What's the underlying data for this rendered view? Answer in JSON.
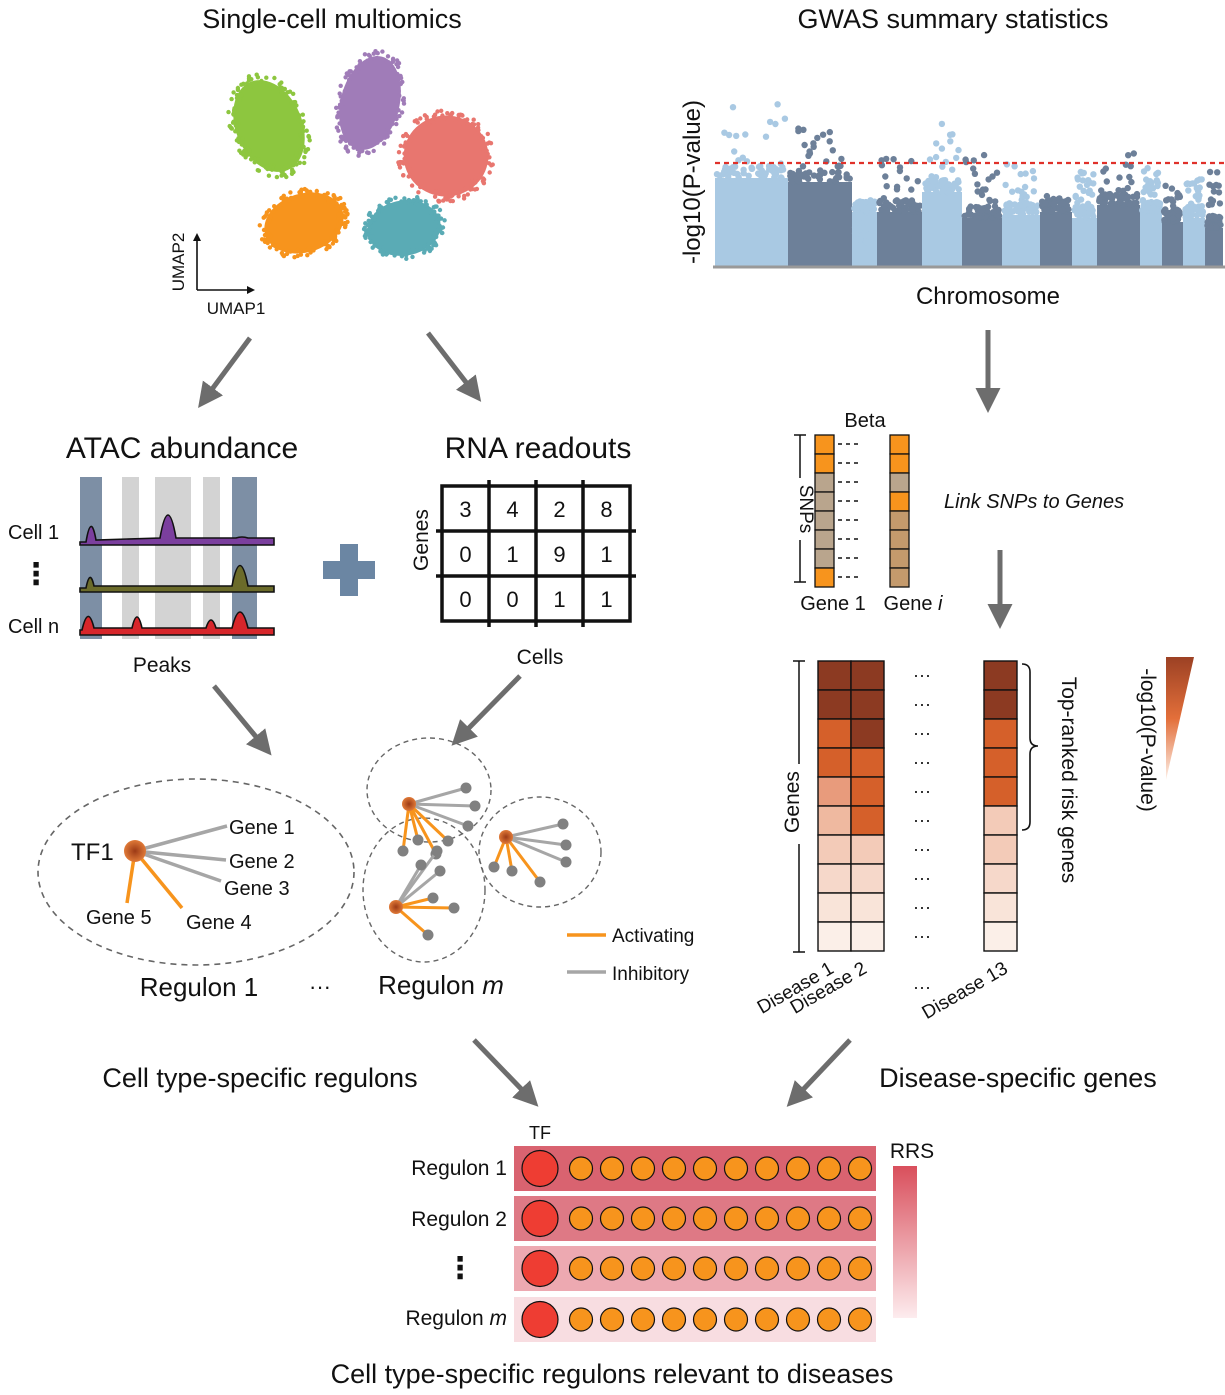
{
  "left_panel": {
    "title": "Single-cell multiomics",
    "umap": {
      "axis_x": "UMAP1",
      "axis_y": "UMAP2",
      "cluster_colors": [
        "#8dc63f",
        "#a07cb8",
        "#e8766f",
        "#f7941d",
        "#5aabb5"
      ]
    },
    "atac": {
      "title": "ATAC abundance",
      "cell_labels": [
        "Cell 1",
        "⋮",
        "Cell n"
      ],
      "x_label": "Peaks",
      "track_colors": [
        "#7b3f9e",
        "#6b6b2a",
        "#d7262b"
      ]
    },
    "rna": {
      "title": "RNA readouts",
      "row_label": "Genes",
      "col_label": "Cells",
      "matrix": [
        [
          "3",
          "4",
          "2",
          "8"
        ],
        [
          "0",
          "1",
          "9",
          "1"
        ],
        [
          "0",
          "0",
          "1",
          "1"
        ]
      ]
    },
    "regulons": {
      "regulon1": {
        "tf": "TF1",
        "genes": [
          "Gene 1",
          "Gene 2",
          "Gene 3",
          "Gene 4",
          "Gene 5"
        ],
        "label": "Regulon 1"
      },
      "ellipsis": "···",
      "regulon_m_label": "Regulon",
      "regulon_m_italic": "m",
      "legend": {
        "activating": "Activating",
        "inhibitory": "Inhibitory"
      },
      "colors": {
        "activating": "#f7941d",
        "inhibitory": "#a6a6a6",
        "tf": "#d5602a",
        "node": "#808080"
      }
    },
    "caption": "Cell type-specific regulons"
  },
  "right_panel": {
    "title": "GWAS summary statistics",
    "manhattan": {
      "ylabel": "-log10(P-value)",
      "xlabel": "Chromosome",
      "colors": [
        "#a9c9e3",
        "#6d8099"
      ],
      "threshold_color": "#e0312a"
    },
    "snp": {
      "header": "Beta",
      "side_label": "SNPs",
      "gene1_label": "Gene 1",
      "genei_label": "Gene",
      "genei_italic": "i",
      "link_text": "Link SNPs to Genes"
    },
    "heatmap": {
      "row_label": "Genes",
      "columns": [
        "Disease 1",
        "Disease 2",
        "Disease 13"
      ],
      "dots": "···",
      "bracket_label": "Top-ranked risk genes",
      "scale_label": "-log10(P-value)"
    },
    "caption": "Disease-specific genes"
  },
  "bottom_panel": {
    "tf_label": "TF",
    "rows": [
      {
        "label": "Regulon 1",
        "italic": ""
      },
      {
        "label": "Regulon 2",
        "italic": ""
      },
      {
        "label": "⋮",
        "italic": ""
      },
      {
        "label": "Regulon ",
        "italic": "m"
      }
    ],
    "scale_label": "RRS",
    "caption": "Cell type-specific regulons relevant to diseases",
    "colors": {
      "tf": "#ee3d33",
      "target": "#f7941d"
    }
  }
}
